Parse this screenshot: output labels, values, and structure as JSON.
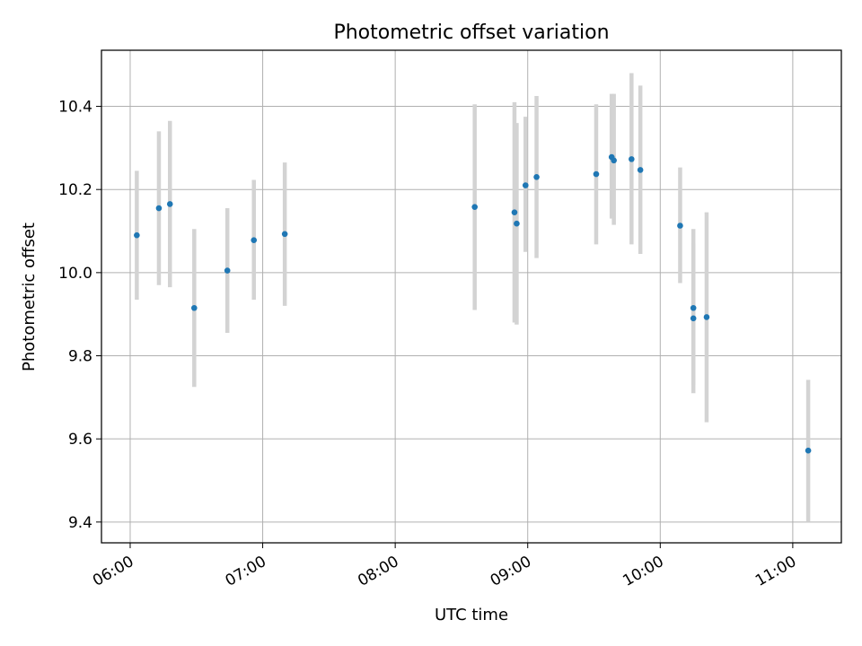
{
  "chart_data": {
    "type": "scatter",
    "title": "Photometric offset variation",
    "xlabel": "UTC time",
    "ylabel": "Photometric offset",
    "x_ticks": [
      "06:00",
      "07:00",
      "08:00",
      "09:00",
      "10:00",
      "11:00"
    ],
    "y_ticks": [
      "9.4",
      "9.6",
      "9.8",
      "10.0",
      "10.2",
      "10.4"
    ],
    "xlim": [
      "05:47",
      "11:22"
    ],
    "ylim": [
      9.35,
      10.535
    ],
    "grid": true,
    "point_color": "#1f77b4",
    "errorbar_color": "#d3d3d3",
    "points": [
      {
        "x": "06:03",
        "y": 10.09,
        "low": 9.935,
        "high": 10.245
      },
      {
        "x": "06:13",
        "y": 10.155,
        "low": 9.97,
        "high": 10.34
      },
      {
        "x": "06:18",
        "y": 10.165,
        "low": 9.965,
        "high": 10.365
      },
      {
        "x": "06:29",
        "y": 9.915,
        "low": 9.725,
        "high": 10.105
      },
      {
        "x": "06:44",
        "y": 10.005,
        "low": 9.855,
        "high": 10.155
      },
      {
        "x": "06:56",
        "y": 10.078,
        "low": 9.935,
        "high": 10.223
      },
      {
        "x": "07:10",
        "y": 10.093,
        "low": 9.92,
        "high": 10.265
      },
      {
        "x": "08:36",
        "y": 10.158,
        "low": 9.91,
        "high": 10.405
      },
      {
        "x": "08:54",
        "y": 10.145,
        "low": 9.88,
        "high": 10.41
      },
      {
        "x": "08:55",
        "y": 10.118,
        "low": 9.875,
        "high": 10.36
      },
      {
        "x": "08:59",
        "y": 10.21,
        "low": 10.05,
        "high": 10.375
      },
      {
        "x": "09:04",
        "y": 10.23,
        "low": 10.035,
        "high": 10.425
      },
      {
        "x": "09:31",
        "y": 10.237,
        "low": 10.068,
        "high": 10.405
      },
      {
        "x": "09:38",
        "y": 10.278,
        "low": 10.13,
        "high": 10.43
      },
      {
        "x": "09:39",
        "y": 10.27,
        "low": 10.115,
        "high": 10.43
      },
      {
        "x": "09:47",
        "y": 10.273,
        "low": 10.068,
        "high": 10.48
      },
      {
        "x": "09:51",
        "y": 10.247,
        "low": 10.045,
        "high": 10.45
      },
      {
        "x": "10:09",
        "y": 10.113,
        "low": 9.975,
        "high": 10.253
      },
      {
        "x": "10:15",
        "y": 9.915,
        "low": 9.73,
        "high": 10.105
      },
      {
        "x": "10:15",
        "y": 9.89,
        "low": 9.71,
        "high": 10.07
      },
      {
        "x": "10:21",
        "y": 9.893,
        "low": 9.64,
        "high": 10.145
      },
      {
        "x": "11:07",
        "y": 9.572,
        "low": 9.4,
        "high": 9.742
      }
    ]
  }
}
